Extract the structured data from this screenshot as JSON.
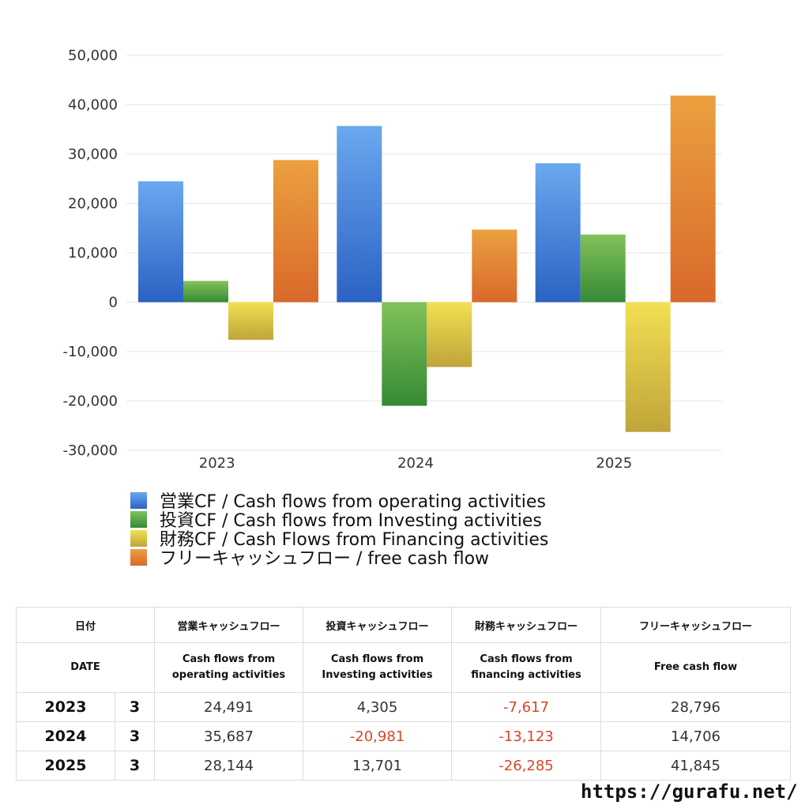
{
  "chart_data": {
    "type": "bar",
    "categories": [
      "2023",
      "2024",
      "2025"
    ],
    "ylim": [
      -30000,
      50000
    ],
    "yticks": [
      50000,
      40000,
      30000,
      20000,
      10000,
      0,
      -10000,
      -20000,
      -30000
    ],
    "ytick_labels": [
      "50,000",
      "40,000",
      "30,000",
      "20,000",
      "10,000",
      "0",
      "-10,000",
      "-20,000",
      "-30,000"
    ],
    "grid": true,
    "legend_position": "bottom",
    "series": [
      {
        "name": "営業CF / Cash flows from operating activities",
        "values": [
          24491,
          35687,
          28144
        ],
        "color_top": "#6aa8ef",
        "color_bottom": "#2b62c4"
      },
      {
        "name": "投資CF / Cash flows from Investing activities",
        "values": [
          4305,
          -20981,
          13701
        ],
        "color_top": "#82c25a",
        "color_bottom": "#358a35"
      },
      {
        "name": "財務CF / Cash Flows from Financing activities",
        "values": [
          -7617,
          -13123,
          -26285
        ],
        "color_top": "#f3df52",
        "color_bottom": "#c0a43a"
      },
      {
        "name": "フリーキャッシュフロー / free cash flow",
        "values": [
          28796,
          14706,
          41845
        ],
        "color_top": "#eba03f",
        "color_bottom": "#d9692a"
      }
    ]
  },
  "table": {
    "header_jp": {
      "date": "日付",
      "operating": "営業キャッシュフロー",
      "investing": "投資キャッシュフロー",
      "financing": "財務キャッシュフロー",
      "free": "フリーキャッシュフロー"
    },
    "header_en": {
      "date": "DATE",
      "operating_1": "Cash flows from",
      "operating_2": "operating activities",
      "investing_1": "Cash flows from",
      "investing_2": "Investing activities",
      "financing_1": "Cash flows from",
      "financing_2": "financing activities",
      "free": "Free cash flow"
    },
    "rows": [
      {
        "year": "2023",
        "month": "3",
        "operating": "24,491",
        "investing": "4,305",
        "financing": "-7,617",
        "free": "28,796"
      },
      {
        "year": "2024",
        "month": "3",
        "operating": "35,687",
        "investing": "-20,981",
        "financing": "-13,123",
        "free": "14,706"
      },
      {
        "year": "2025",
        "month": "3",
        "operating": "28,144",
        "investing": "13,701",
        "financing": "-26,285",
        "free": "41,845"
      }
    ]
  },
  "footer": {
    "site": "https://gurafu.net/"
  }
}
